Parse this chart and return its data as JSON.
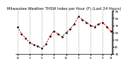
{
  "title": "Milwaukee Weather THSW Index per Hour (F) (Last 24 Hours)",
  "x_values": [
    0,
    1,
    2,
    3,
    4,
    5,
    6,
    7,
    8,
    9,
    10,
    11,
    12,
    13,
    14,
    15,
    16,
    17,
    18,
    19,
    20,
    21,
    22,
    23
  ],
  "y_values": [
    68,
    58,
    52,
    46,
    43,
    41,
    38,
    44,
    55,
    62,
    58,
    54,
    60,
    65,
    72,
    82,
    78,
    74,
    70,
    68,
    72,
    74,
    68,
    62
  ],
  "line_color": "#cc0000",
  "marker_color": "#000000",
  "bg_color": "#ffffff",
  "plot_bg": "#ffffff",
  "grid_color": "#999999",
  "ylim_min": 30,
  "ylim_max": 90,
  "ytick_values": [
    30,
    40,
    50,
    60,
    70,
    80,
    90
  ],
  "ytick_labels": [
    "30",
    "40",
    "50",
    "60",
    "70",
    "80",
    "90"
  ],
  "x_tick_positions": [
    0,
    3,
    6,
    9,
    12,
    15,
    18,
    21,
    23
  ],
  "x_tick_labels": [
    "12",
    "3",
    "6",
    "9",
    "12",
    "3",
    "6",
    "9",
    "11"
  ],
  "title_fontsize": 3.8,
  "tick_fontsize": 3.0
}
